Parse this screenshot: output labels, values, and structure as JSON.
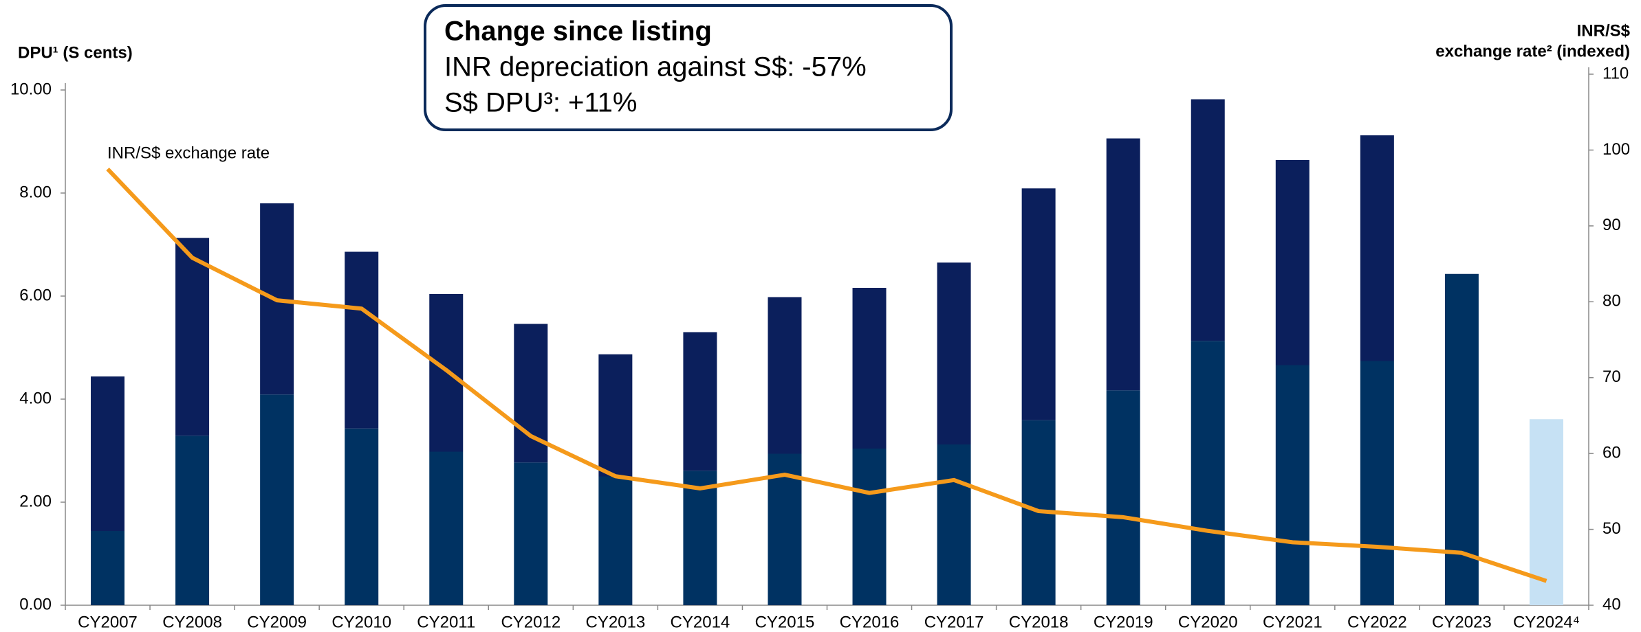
{
  "chart_data": {
    "type": "bar",
    "y_label": "DPU¹ (S cents)",
    "y2_label": [
      "INR/S$",
      "exchange rate² (indexed)"
    ],
    "annotation": "INR/S$ exchange rate",
    "callout": {
      "title": "Change since listing",
      "lines": [
        "INR depreciation against S$: -57%",
        "S$ DPU³: +11%"
      ]
    },
    "categories": [
      "CY2007",
      "CY2008",
      "CY2009",
      "CY2010",
      "CY2011",
      "CY2012",
      "CY2013",
      "CY2014",
      "CY2015",
      "CY2016",
      "CY2017",
      "CY2018",
      "CY2019",
      "CY2020",
      "CY2021",
      "CY2022",
      "CY2023",
      "CY2024⁴"
    ],
    "series": [
      {
        "type": "bar",
        "color": "#003262",
        "colors": [
          "#003262",
          "#003262",
          "#003262",
          "#003262",
          "#003262",
          "#003262",
          "#003262",
          "#003262",
          "#003262",
          "#003262",
          "#003262",
          "#003262",
          "#003262",
          "#003262",
          "#003262",
          "#003262",
          "#003262",
          "#c6e1f4"
        ],
        "values": [
          1.44,
          3.29,
          4.09,
          3.43,
          2.98,
          2.77,
          2.5,
          2.61,
          2.94,
          3.04,
          3.12,
          3.59,
          4.17,
          5.13,
          4.66,
          4.74,
          6.43,
          3.61
        ]
      },
      {
        "type": "bar",
        "color": "#0b1f5c",
        "values": [
          3.0,
          3.84,
          3.71,
          3.43,
          3.06,
          2.69,
          2.37,
          2.69,
          3.04,
          3.12,
          3.53,
          4.5,
          4.89,
          4.69,
          3.98,
          4.38,
          null,
          null
        ]
      },
      {
        "type": "line",
        "axis": "y2",
        "color": "#f59a1b",
        "values": [
          97.5,
          85.8,
          80.2,
          79.1,
          71.0,
          62.3,
          57.0,
          55.4,
          57.2,
          54.8,
          56.5,
          52.4,
          51.6,
          49.8,
          48.3,
          47.7,
          46.9,
          43.2
        ]
      }
    ],
    "ylim": [
      0,
      10
    ],
    "yticks": [
      {
        "value": 0,
        "label": "0.00"
      },
      {
        "value": 2,
        "label": "2.00"
      },
      {
        "value": 4,
        "label": "4.00"
      },
      {
        "value": 6,
        "label": "6.00"
      },
      {
        "value": 8,
        "label": "8.00"
      },
      {
        "value": 10,
        "label": "10.00"
      }
    ],
    "y2lim": [
      40,
      110
    ],
    "y2ticks": [
      40,
      50,
      60,
      70,
      80,
      90,
      100,
      110
    ]
  }
}
